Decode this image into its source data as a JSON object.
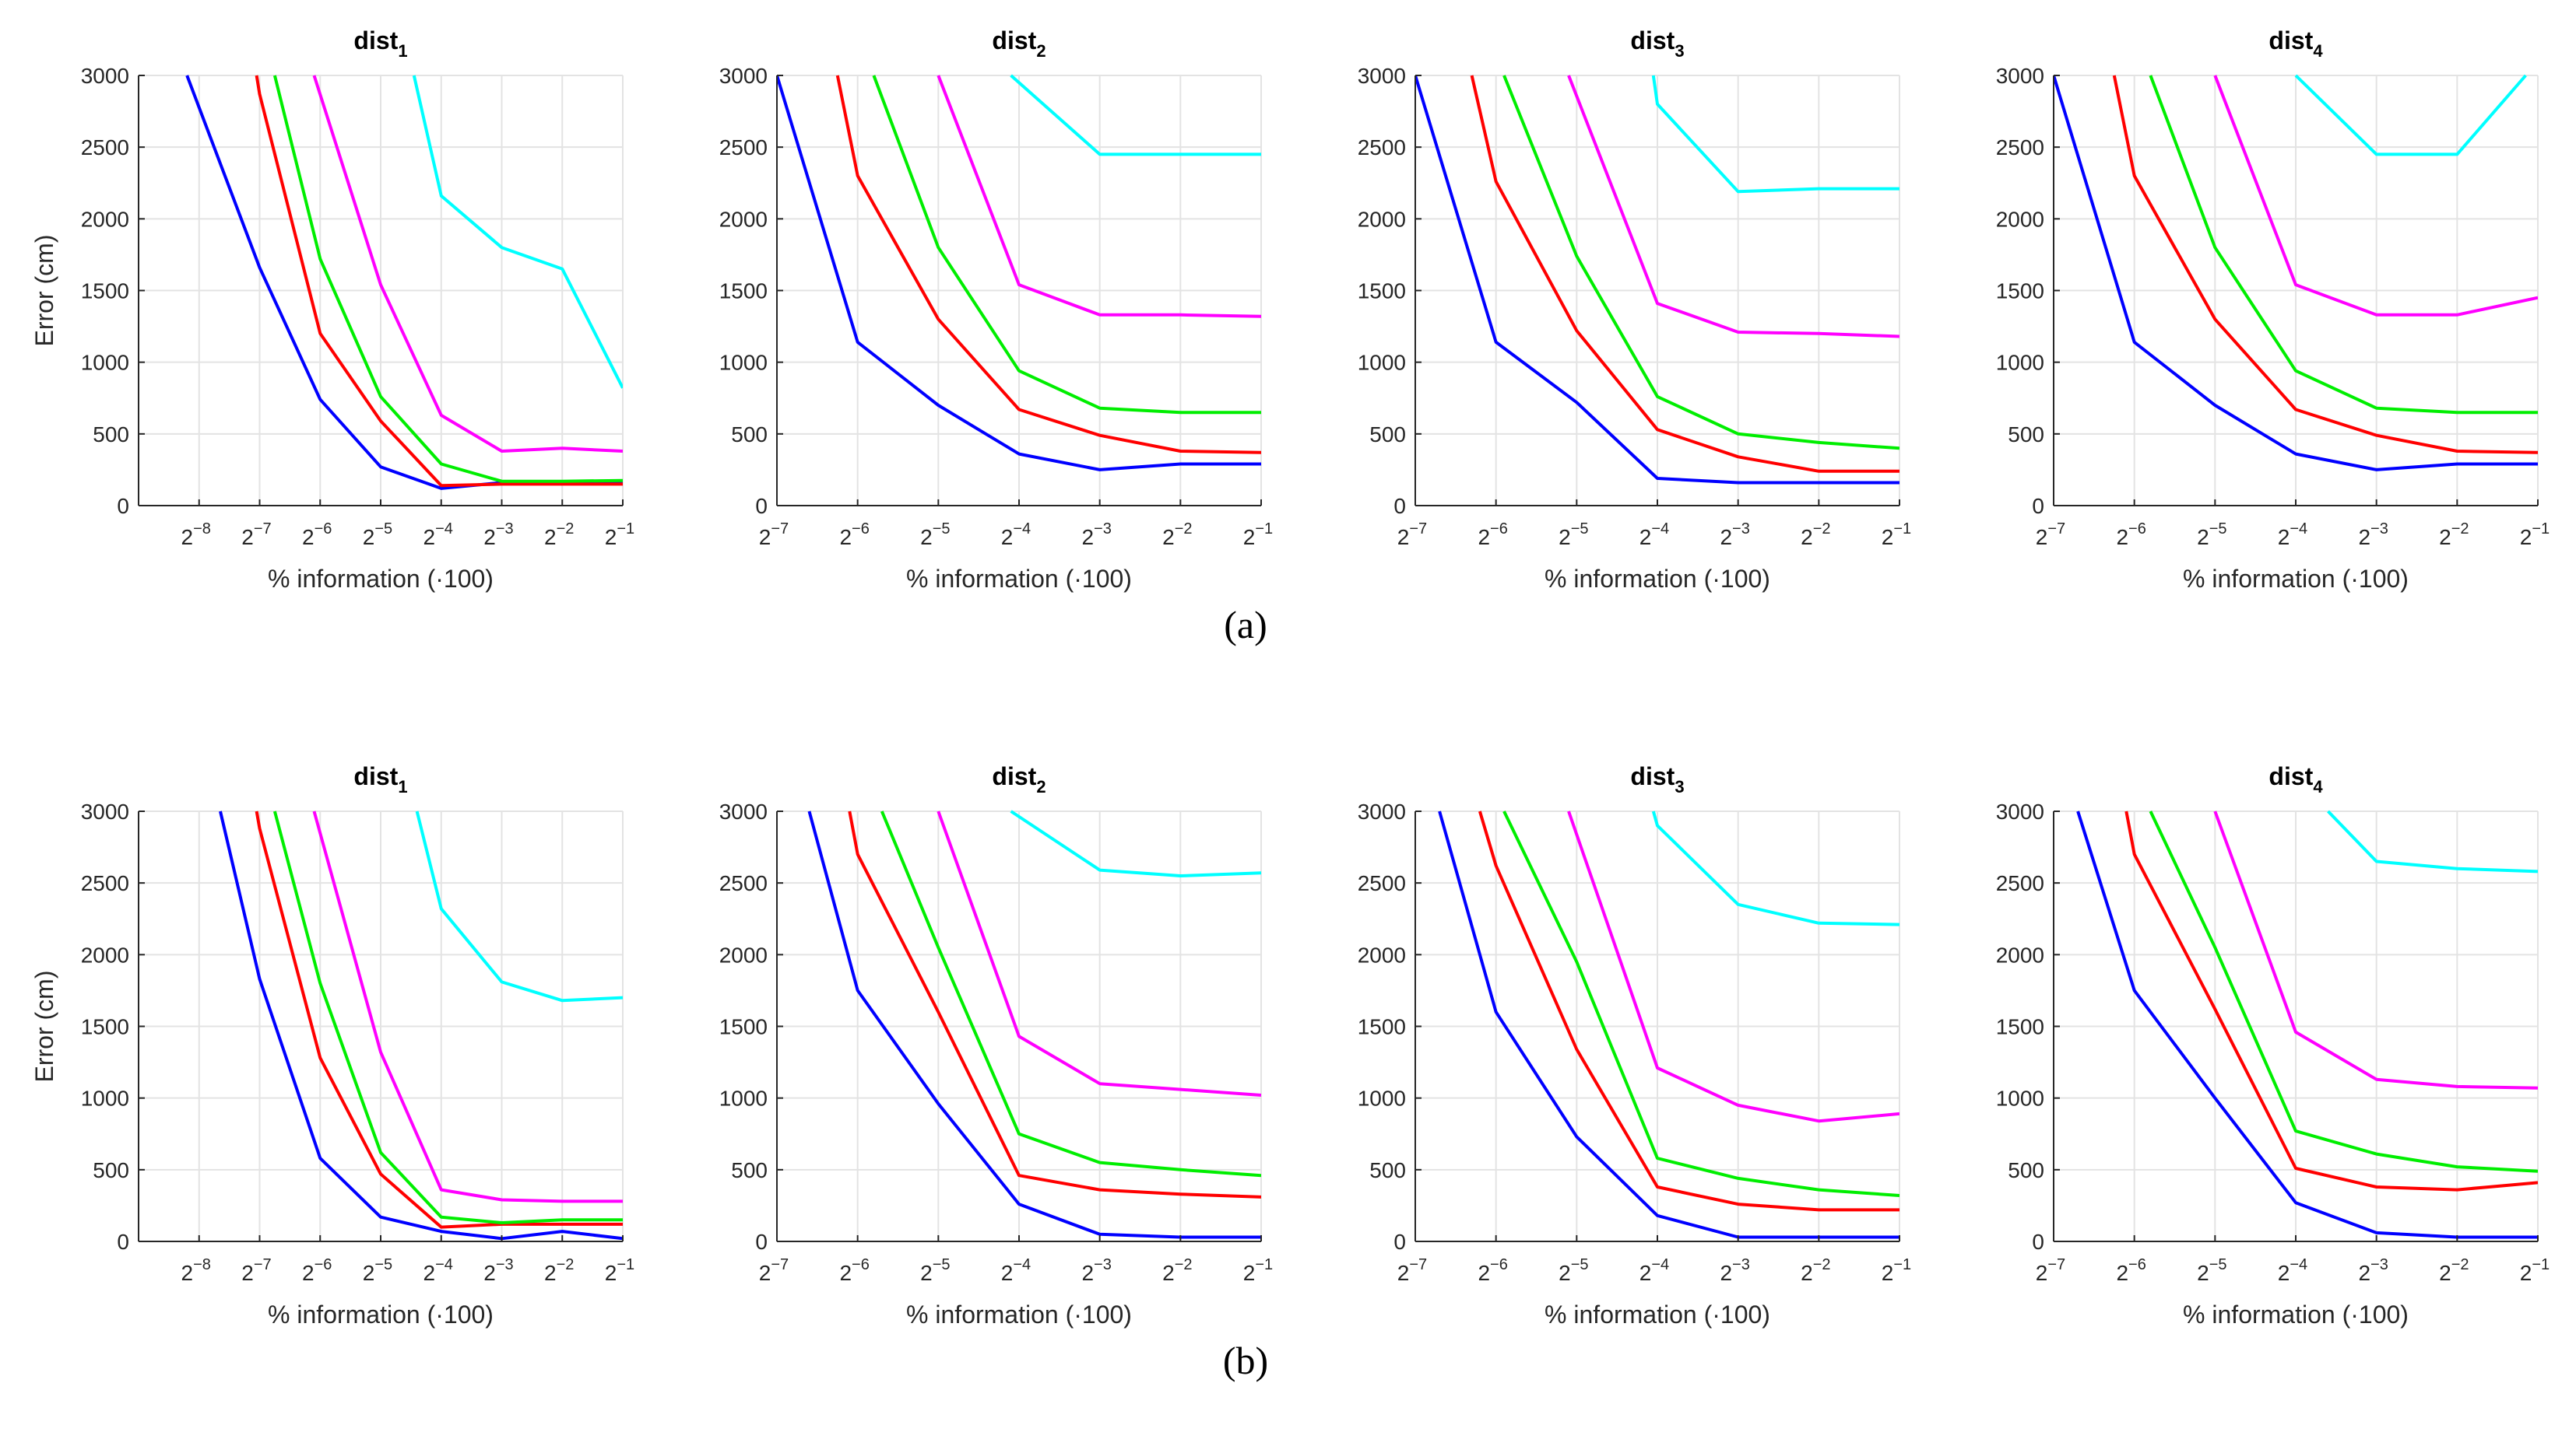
{
  "figure": {
    "captions": [
      "(a)",
      "(b)"
    ],
    "y_axis_label": "Error (cm)",
    "x_axis_label": "% information (·100)"
  },
  "series_colors": [
    "#0000ff",
    "#ff0000",
    "#00ee00",
    "#ff00ff",
    "#00ffff"
  ],
  "chart_data": [
    {
      "type": "line",
      "row": "a",
      "title_base": "dist",
      "title_sub": "1",
      "xlabel": "% information (·100)",
      "ylabel": "Error (cm)",
      "x_ticks": [
        "2^-8",
        "2^-7",
        "2^-6",
        "2^-5",
        "2^-4",
        "2^-3",
        "2^-2",
        "2^-1"
      ],
      "x_exponents": [
        -8,
        -7,
        -6,
        -5,
        -4,
        -3,
        -2,
        -1
      ],
      "xlim": [
        -9,
        -1
      ],
      "y_ticks": [
        0,
        500,
        1000,
        1500,
        2000,
        2500,
        3000
      ],
      "ylim": [
        0,
        3000
      ],
      "grid": true,
      "series": [
        {
          "x": [
            -8.2,
            -7,
            -6,
            -5,
            -4,
            -3,
            -2,
            -1
          ],
          "values": [
            3000,
            1660,
            740,
            270,
            120,
            160,
            160,
            160
          ]
        },
        {
          "x": [
            -7.05,
            -7,
            -6,
            -5,
            -4,
            -3,
            -2,
            -1
          ],
          "values": [
            3000,
            2870,
            1200,
            590,
            140,
            150,
            150,
            150
          ]
        },
        {
          "x": [
            -6.75,
            -6,
            -5,
            -4,
            -3,
            -2,
            -1
          ],
          "values": [
            3000,
            1720,
            760,
            290,
            170,
            170,
            175
          ]
        },
        {
          "x": [
            -6.1,
            -5,
            -4,
            -3,
            -2,
            -1
          ],
          "values": [
            3000,
            1540,
            630,
            380,
            400,
            380
          ]
        },
        {
          "x": [
            -4.45,
            -4,
            -3,
            -2,
            -1
          ],
          "values": [
            3000,
            2160,
            1800,
            1650,
            820
          ]
        }
      ]
    },
    {
      "type": "line",
      "row": "a",
      "title_base": "dist",
      "title_sub": "2",
      "xlabel": "% information (·100)",
      "ylabel": "",
      "x_ticks": [
        "2^-7",
        "2^-6",
        "2^-5",
        "2^-4",
        "2^-3",
        "2^-2",
        "2^-1"
      ],
      "x_exponents": [
        -7,
        -6,
        -5,
        -4,
        -3,
        -2,
        -1
      ],
      "xlim": [
        -7,
        -1
      ],
      "y_ticks": [
        0,
        500,
        1000,
        1500,
        2000,
        2500,
        3000
      ],
      "ylim": [
        0,
        3000
      ],
      "grid": true,
      "series": [
        {
          "x": [
            -7,
            -6,
            -5,
            -4,
            -3,
            -2,
            -1
          ],
          "values": [
            3000,
            1140,
            700,
            360,
            250,
            290,
            290
          ]
        },
        {
          "x": [
            -6.25,
            -6,
            -5,
            -4,
            -3,
            -2,
            -1
          ],
          "values": [
            3000,
            2300,
            1300,
            670,
            490,
            380,
            370
          ]
        },
        {
          "x": [
            -5.8,
            -5,
            -4,
            -3,
            -2,
            -1
          ],
          "values": [
            3000,
            1800,
            940,
            680,
            650,
            650
          ]
        },
        {
          "x": [
            -5,
            -4,
            -3,
            -2,
            -1
          ],
          "values": [
            3000,
            1540,
            1330,
            1330,
            1320
          ]
        },
        {
          "x": [
            -4.1,
            -3,
            -2,
            -1
          ],
          "values": [
            3000,
            2450,
            2450,
            2450
          ]
        }
      ]
    },
    {
      "type": "line",
      "row": "a",
      "title_base": "dist",
      "title_sub": "3",
      "xlabel": "% information (·100)",
      "ylabel": "",
      "x_ticks": [
        "2^-7",
        "2^-6",
        "2^-5",
        "2^-4",
        "2^-3",
        "2^-2",
        "2^-1"
      ],
      "x_exponents": [
        -7,
        -6,
        -5,
        -4,
        -3,
        -2,
        -1
      ],
      "xlim": [
        -7,
        -1
      ],
      "y_ticks": [
        0,
        500,
        1000,
        1500,
        2000,
        2500,
        3000
      ],
      "ylim": [
        0,
        3000
      ],
      "grid": true,
      "series": [
        {
          "x": [
            -7,
            -6,
            -5,
            -4,
            -3,
            -2,
            -1
          ],
          "values": [
            3000,
            1140,
            720,
            190,
            160,
            160,
            160
          ]
        },
        {
          "x": [
            -6.3,
            -6,
            -5,
            -4,
            -3,
            -2,
            -1
          ],
          "values": [
            3000,
            2260,
            1220,
            530,
            340,
            240,
            240
          ]
        },
        {
          "x": [
            -5.9,
            -5,
            -4,
            -3,
            -2,
            -1
          ],
          "values": [
            3000,
            1740,
            760,
            500,
            440,
            400
          ]
        },
        {
          "x": [
            -5.1,
            -4,
            -3,
            -2,
            -1
          ],
          "values": [
            3000,
            1410,
            1210,
            1200,
            1180
          ]
        },
        {
          "x": [
            -4.05,
            -4,
            -3,
            -2,
            -1
          ],
          "values": [
            3000,
            2800,
            2190,
            2210,
            2210
          ]
        }
      ]
    },
    {
      "type": "line",
      "row": "a",
      "title_base": "dist",
      "title_sub": "4",
      "xlabel": "% information (·100)",
      "ylabel": "",
      "x_ticks": [
        "2^-7",
        "2^-6",
        "2^-5",
        "2^-4",
        "2^-3",
        "2^-2",
        "2^-1"
      ],
      "x_exponents": [
        -7,
        -6,
        -5,
        -4,
        -3,
        -2,
        -1
      ],
      "xlim": [
        -7,
        -1
      ],
      "y_ticks": [
        0,
        500,
        1000,
        1500,
        2000,
        2500,
        3000
      ],
      "ylim": [
        0,
        3000
      ],
      "grid": true,
      "series": [
        {
          "x": [
            -7,
            -6,
            -5,
            -4,
            -3,
            -2,
            -1
          ],
          "values": [
            3000,
            1140,
            700,
            360,
            250,
            290,
            290
          ]
        },
        {
          "x": [
            -6.25,
            -6,
            -5,
            -4,
            -3,
            -2,
            -1
          ],
          "values": [
            3000,
            2300,
            1300,
            670,
            490,
            380,
            370
          ]
        },
        {
          "x": [
            -5.8,
            -5,
            -4,
            -3,
            -2,
            -1
          ],
          "values": [
            3000,
            1800,
            940,
            680,
            650,
            650
          ]
        },
        {
          "x": [
            -5,
            -4,
            -3,
            -2,
            -1
          ],
          "values": [
            3000,
            1540,
            1330,
            1330,
            1450
          ]
        },
        {
          "x": [
            -4,
            -3,
            -2,
            -1.15
          ],
          "values": [
            3000,
            2450,
            2450,
            3000
          ]
        }
      ]
    },
    {
      "type": "line",
      "row": "b",
      "title_base": "dist",
      "title_sub": "1",
      "xlabel": "% information (·100)",
      "ylabel": "Error (cm)",
      "x_ticks": [
        "2^-8",
        "2^-7",
        "2^-6",
        "2^-5",
        "2^-4",
        "2^-3",
        "2^-2",
        "2^-1"
      ],
      "x_exponents": [
        -8,
        -7,
        -6,
        -5,
        -4,
        -3,
        -2,
        -1
      ],
      "xlim": [
        -9,
        -1
      ],
      "y_ticks": [
        0,
        500,
        1000,
        1500,
        2000,
        2500,
        3000
      ],
      "ylim": [
        0,
        3000
      ],
      "grid": true,
      "series": [
        {
          "x": [
            -7.65,
            -7,
            -6,
            -5,
            -4,
            -3,
            -2,
            -1
          ],
          "values": [
            3000,
            1830,
            580,
            170,
            70,
            20,
            70,
            20
          ]
        },
        {
          "x": [
            -7.05,
            -7,
            -6,
            -5,
            -4,
            -3,
            -2,
            -1
          ],
          "values": [
            3000,
            2880,
            1280,
            470,
            100,
            120,
            120,
            120
          ]
        },
        {
          "x": [
            -6.75,
            -6,
            -5,
            -4,
            -3,
            -2,
            -1
          ],
          "values": [
            3000,
            1800,
            620,
            170,
            130,
            150,
            150
          ]
        },
        {
          "x": [
            -6.1,
            -5,
            -4,
            -3,
            -2,
            -1
          ],
          "values": [
            3000,
            1320,
            360,
            290,
            280,
            280
          ]
        },
        {
          "x": [
            -4.4,
            -4,
            -3,
            -2,
            -1
          ],
          "values": [
            3000,
            2320,
            1810,
            1680,
            1700
          ]
        }
      ]
    },
    {
      "type": "line",
      "row": "b",
      "title_base": "dist",
      "title_sub": "2",
      "xlabel": "% information (·100)",
      "ylabel": "",
      "x_ticks": [
        "2^-7",
        "2^-6",
        "2^-5",
        "2^-4",
        "2^-3",
        "2^-2",
        "2^-1"
      ],
      "x_exponents": [
        -7,
        -6,
        -5,
        -4,
        -3,
        -2,
        -1
      ],
      "xlim": [
        -7,
        -1
      ],
      "y_ticks": [
        0,
        500,
        1000,
        1500,
        2000,
        2500,
        3000
      ],
      "ylim": [
        0,
        3000
      ],
      "grid": true,
      "series": [
        {
          "x": [
            -6.6,
            -6,
            -5,
            -4,
            -3,
            -2,
            -1
          ],
          "values": [
            3000,
            1750,
            960,
            260,
            50,
            30,
            30
          ]
        },
        {
          "x": [
            -6.1,
            -6,
            -5,
            -4,
            -3,
            -2,
            -1
          ],
          "values": [
            3000,
            2700,
            1600,
            460,
            360,
            330,
            310
          ]
        },
        {
          "x": [
            -5.7,
            -5,
            -4,
            -3,
            -2,
            -1
          ],
          "values": [
            3000,
            2050,
            750,
            550,
            500,
            460
          ]
        },
        {
          "x": [
            -5,
            -4,
            -3,
            -2,
            -1
          ],
          "values": [
            3000,
            1430,
            1100,
            1060,
            1020
          ]
        },
        {
          "x": [
            -4.1,
            -3,
            -2,
            -1
          ],
          "values": [
            3000,
            2590,
            2550,
            2570
          ]
        }
      ]
    },
    {
      "type": "line",
      "row": "b",
      "title_base": "dist",
      "title_sub": "3",
      "xlabel": "% information (·100)",
      "ylabel": "",
      "x_ticks": [
        "2^-7",
        "2^-6",
        "2^-5",
        "2^-4",
        "2^-3",
        "2^-2",
        "2^-1"
      ],
      "x_exponents": [
        -7,
        -6,
        -5,
        -4,
        -3,
        -2,
        -1
      ],
      "xlim": [
        -7,
        -1
      ],
      "y_ticks": [
        0,
        500,
        1000,
        1500,
        2000,
        2500,
        3000
      ],
      "ylim": [
        0,
        3000
      ],
      "grid": true,
      "series": [
        {
          "x": [
            -6.7,
            -6,
            -5,
            -4,
            -3,
            -2,
            -1
          ],
          "values": [
            3000,
            1600,
            730,
            180,
            30,
            30,
            30
          ]
        },
        {
          "x": [
            -6.2,
            -6,
            -5,
            -4,
            -3,
            -2,
            -1
          ],
          "values": [
            3000,
            2620,
            1340,
            380,
            260,
            220,
            220
          ]
        },
        {
          "x": [
            -5.9,
            -5,
            -4,
            -3,
            -2,
            -1
          ],
          "values": [
            3000,
            1950,
            580,
            440,
            360,
            320
          ]
        },
        {
          "x": [
            -5.1,
            -4,
            -3,
            -2,
            -1
          ],
          "values": [
            3000,
            1210,
            950,
            840,
            890
          ]
        },
        {
          "x": [
            -4.05,
            -4,
            -3,
            -2,
            -1
          ],
          "values": [
            3000,
            2900,
            2350,
            2220,
            2210
          ]
        }
      ]
    },
    {
      "type": "line",
      "row": "b",
      "title_base": "dist",
      "title_sub": "4",
      "xlabel": "% information (·100)",
      "ylabel": "",
      "x_ticks": [
        "2^-7",
        "2^-6",
        "2^-5",
        "2^-4",
        "2^-3",
        "2^-2",
        "2^-1"
      ],
      "x_exponents": [
        -7,
        -6,
        -5,
        -4,
        -3,
        -2,
        -1
      ],
      "xlim": [
        -7,
        -1
      ],
      "y_ticks": [
        0,
        500,
        1000,
        1500,
        2000,
        2500,
        3000
      ],
      "ylim": [
        0,
        3000
      ],
      "grid": true,
      "series": [
        {
          "x": [
            -6.7,
            -6,
            -5,
            -4,
            -3,
            -2,
            -1
          ],
          "values": [
            3000,
            1750,
            1000,
            270,
            60,
            30,
            30
          ]
        },
        {
          "x": [
            -6.1,
            -6,
            -5,
            -4,
            -3,
            -2,
            -1
          ],
          "values": [
            3000,
            2700,
            1620,
            510,
            380,
            360,
            410
          ]
        },
        {
          "x": [
            -5.8,
            -5,
            -4,
            -3,
            -2,
            -1
          ],
          "values": [
            3000,
            2050,
            770,
            610,
            520,
            490
          ]
        },
        {
          "x": [
            -5,
            -4,
            -3,
            -2,
            -1
          ],
          "values": [
            3000,
            1460,
            1130,
            1080,
            1070
          ]
        },
        {
          "x": [
            -3.6,
            -3,
            -2,
            -1
          ],
          "values": [
            3000,
            2650,
            2600,
            2580
          ]
        }
      ]
    }
  ]
}
